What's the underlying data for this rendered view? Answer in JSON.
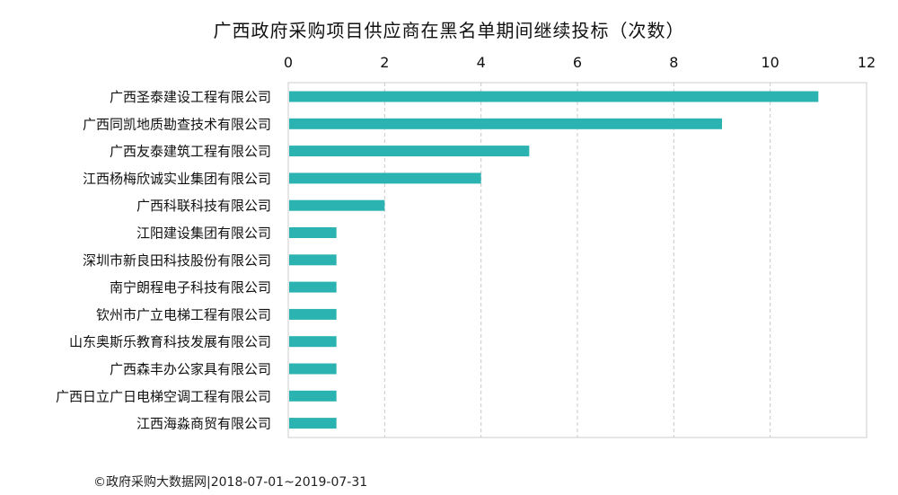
{
  "chart_data": {
    "type": "bar",
    "orientation": "horizontal",
    "title": "广西政府采购项目供应商在黑名单期间继续投标（次数）",
    "categories": [
      "广西圣泰建设工程有限公司",
      "广西同凯地质勘查技术有限公司",
      "广西友泰建筑工程有限公司",
      "江西杨梅欣诚实业集团有限公司",
      "广西科联科技有限公司",
      "江阳建设集团有限公司",
      "深圳市新良田科技股份有限公司",
      "南宁朗程电子科技有限公司",
      "钦州市广立电梯工程有限公司",
      "山东奥斯乐教育科技发展有限公司",
      "广西森丰办公家具有限公司",
      "广西日立广日电梯空调工程有限公司",
      "江西海淼商贸有限公司"
    ],
    "values": [
      11,
      9,
      5,
      4,
      2,
      1,
      1,
      1,
      1,
      1,
      1,
      1,
      1
    ],
    "xlim": [
      0,
      12
    ],
    "xticks": [
      0,
      2,
      4,
      6,
      8,
      10,
      12
    ],
    "x_axis_position": "top",
    "grid": "vertical-dashed",
    "bar_color": "#2ab3b1"
  },
  "footer": "©政府采购大数据网|2018-07-01~2019-07-31"
}
